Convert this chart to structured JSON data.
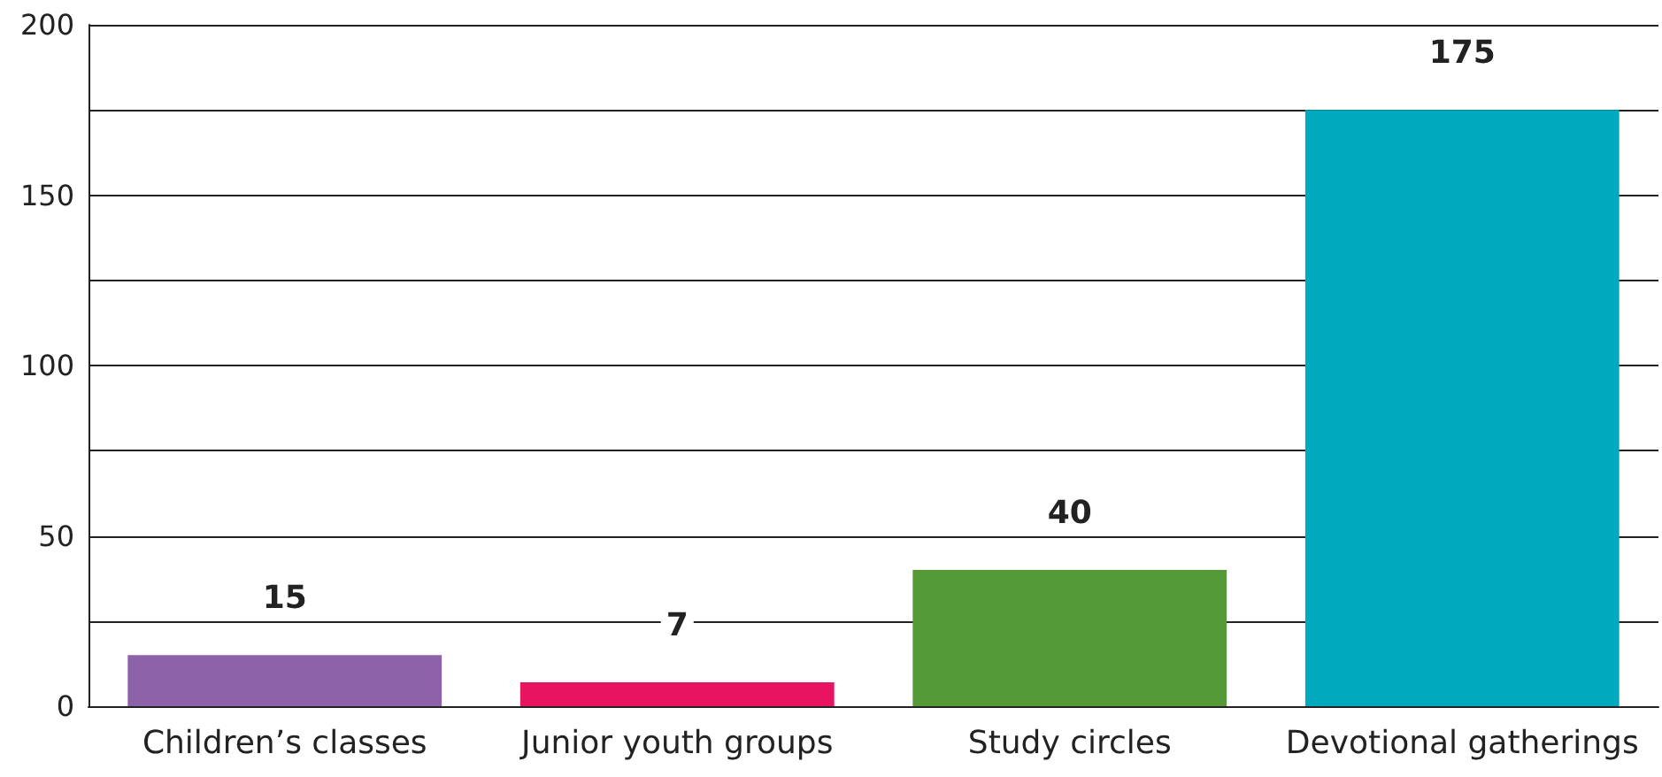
{
  "chart_data": {
    "type": "bar",
    "categories": [
      "Children’s classes",
      "Junior youth groups",
      "Study circles",
      "Devotional gatherings"
    ],
    "values": [
      15,
      7,
      40,
      175
    ],
    "colors": [
      "#8e62a9",
      "#e8145f",
      "#549a37",
      "#00a9bd"
    ],
    "ylim": [
      0,
      200
    ],
    "yticks": [
      0,
      {
        "value": 25,
        "label": null
      },
      50,
      {
        "value": 75,
        "label": null
      },
      100,
      {
        "value": 125,
        "label": null
      },
      150,
      {
        "value": 175,
        "label": null
      },
      200
    ],
    "grid": "y",
    "data_labels": true
  }
}
